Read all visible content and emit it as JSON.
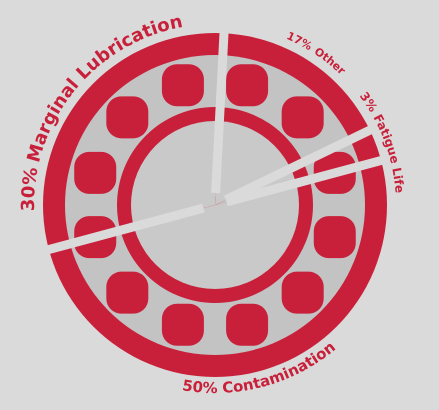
{
  "chart_data": {
    "type": "pie",
    "categories": [
      "Marginal Lubrication",
      "Other",
      "Fatigue Life",
      "Contamination"
    ],
    "values": [
      30,
      17,
      3,
      50
    ],
    "value_labels": [
      "30%",
      "17%",
      "3%",
      "50%"
    ],
    "color": "#c8203a"
  }
}
